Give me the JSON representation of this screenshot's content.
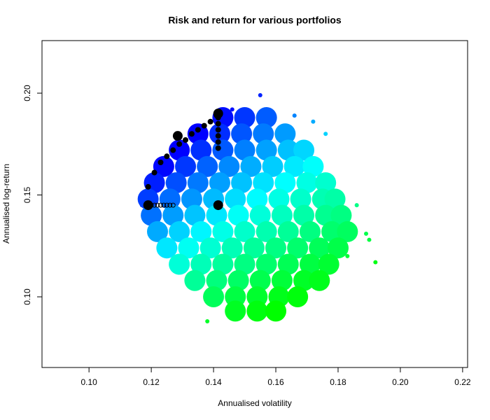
{
  "chart_data": {
    "type": "scatter",
    "title": "Risk and return for various portfolios",
    "x_label": "Annualised volatility",
    "y_label": "Annualised log-return",
    "xlim": [
      0.0849,
      0.2216
    ],
    "ylim": [
      0.0653,
      0.2258
    ],
    "xticks": [
      {
        "value": 0.1,
        "label": "0.10"
      },
      0.12,
      0.14,
      0.16,
      0.18,
      {
        "value": 0.2,
        "label": "0.20"
      },
      0.22
    ],
    "yticks": [
      {
        "value": 0.1,
        "label": "0.10"
      },
      0.15,
      {
        "value": 0.2,
        "label": "0.20"
      }
    ],
    "colors": [
      "#00ff00",
      "#00ffff",
      "#0000ff"
    ],
    "cloud": {
      "x": [
        0.143,
        0.15,
        0.157,
        0.135,
        0.142,
        0.149,
        0.156,
        0.163,
        0.129,
        0.136,
        0.143,
        0.15,
        0.157,
        0.164,
        0.169,
        0.124,
        0.131,
        0.138,
        0.145,
        0.152,
        0.159,
        0.166,
        0.172,
        0.121,
        0.128,
        0.135,
        0.142,
        0.149,
        0.156,
        0.163,
        0.17,
        0.176,
        0.119,
        0.126,
        0.133,
        0.14,
        0.147,
        0.154,
        0.161,
        0.168,
        0.175,
        0.179,
        0.12,
        0.127,
        0.134,
        0.141,
        0.148,
        0.155,
        0.162,
        0.169,
        0.176,
        0.181,
        0.122,
        0.129,
        0.136,
        0.143,
        0.15,
        0.157,
        0.164,
        0.171,
        0.178,
        0.183,
        0.125,
        0.132,
        0.139,
        0.146,
        0.153,
        0.16,
        0.167,
        0.174,
        0.18,
        0.129,
        0.136,
        0.143,
        0.15,
        0.157,
        0.164,
        0.171,
        0.177,
        0.134,
        0.141,
        0.148,
        0.155,
        0.162,
        0.169,
        0.174,
        0.14,
        0.147,
        0.154,
        0.161,
        0.167,
        0.147,
        0.154,
        0.16
      ],
      "y": [
        0.188,
        0.188,
        0.188,
        0.18,
        0.18,
        0.18,
        0.18,
        0.18,
        0.172,
        0.172,
        0.172,
        0.172,
        0.172,
        0.172,
        0.172,
        0.164,
        0.164,
        0.164,
        0.164,
        0.164,
        0.164,
        0.164,
        0.164,
        0.156,
        0.156,
        0.156,
        0.156,
        0.156,
        0.156,
        0.156,
        0.156,
        0.156,
        0.148,
        0.148,
        0.148,
        0.148,
        0.148,
        0.148,
        0.148,
        0.148,
        0.148,
        0.148,
        0.14,
        0.14,
        0.14,
        0.14,
        0.14,
        0.14,
        0.14,
        0.14,
        0.14,
        0.14,
        0.132,
        0.132,
        0.132,
        0.132,
        0.132,
        0.132,
        0.132,
        0.132,
        0.132,
        0.132,
        0.124,
        0.124,
        0.124,
        0.124,
        0.124,
        0.124,
        0.124,
        0.124,
        0.124,
        0.116,
        0.116,
        0.116,
        0.116,
        0.116,
        0.116,
        0.116,
        0.116,
        0.108,
        0.108,
        0.108,
        0.108,
        0.108,
        0.108,
        0.108,
        0.1,
        0.1,
        0.1,
        0.1,
        0.1,
        0.093,
        0.093,
        0.093
      ]
    },
    "outliers": {
      "x": [
        0.155,
        0.192,
        0.189,
        0.186,
        0.138,
        0.166,
        0.176,
        0.117,
        0.183,
        0.146,
        0.172,
        0.19
      ],
      "y": [
        0.199,
        0.117,
        0.131,
        0.145,
        0.088,
        0.189,
        0.18,
        0.145,
        0.12,
        0.192,
        0.186,
        0.128
      ]
    },
    "frontier": {
      "color": "#000000",
      "x": [
        0.119,
        0.121,
        0.123,
        0.125,
        0.127,
        0.129,
        0.131,
        0.133,
        0.135,
        0.137,
        0.139,
        0.141
      ],
      "y": [
        0.154,
        0.161,
        0.166,
        0.169,
        0.172,
        0.175,
        0.177,
        0.18,
        0.182,
        0.184,
        0.186,
        0.189
      ]
    },
    "vertical": {
      "color": "#000000",
      "x": [
        0.1415,
        0.1415,
        0.1415,
        0.1415,
        0.1415,
        0.1415
      ],
      "y": [
        0.173,
        0.176,
        0.179,
        0.182,
        0.185,
        0.188
      ]
    },
    "horizontal": {
      "color": "#000000",
      "x": [
        0.12,
        0.121,
        0.122,
        0.123,
        0.124,
        0.125,
        0.126,
        0.127
      ],
      "y": [
        0.145,
        0.145,
        0.145,
        0.145,
        0.145,
        0.145,
        0.145,
        0.145
      ]
    },
    "highlights": {
      "color": "#000000",
      "x": [
        0.1415,
        0.1285,
        0.1415,
        0.119
      ],
      "y": [
        0.145,
        0.179,
        0.19,
        0.145
      ]
    }
  }
}
